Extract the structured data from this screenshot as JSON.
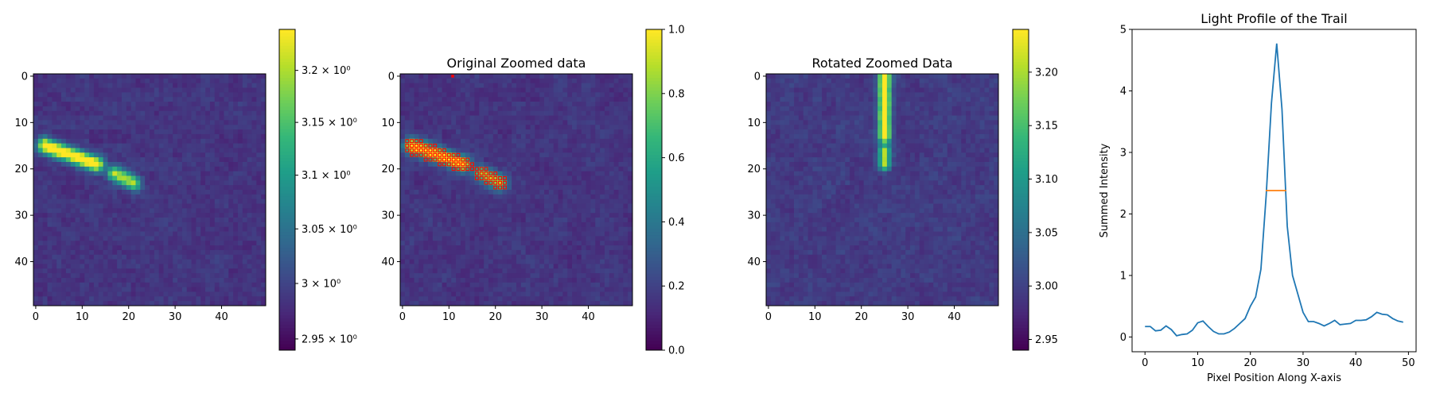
{
  "colors": {
    "viridis": [
      "#440154",
      "#482878",
      "#3e4989",
      "#31688e",
      "#26828e",
      "#1f9e89",
      "#35b779",
      "#6ece58",
      "#b5de2b",
      "#fde725"
    ],
    "line": "#1f77b4",
    "fwhm": "#ff7f0e",
    "overlay": "#ff0000"
  },
  "chart_data": [
    {
      "type": "heatmap",
      "title": "",
      "xlabel": "",
      "ylabel": "",
      "grid_size": 50,
      "xticks": [
        "0",
        "10",
        "20",
        "30",
        "40"
      ],
      "yticks": [
        "0",
        "10",
        "20",
        "30",
        "40"
      ],
      "background_level": 0.1,
      "trail": {
        "segments": [
          {
            "from": [
              2,
              15
            ],
            "to": [
              13,
              19
            ],
            "peak": 1.0
          },
          {
            "from": [
              17,
              21
            ],
            "to": [
              21,
              23
            ],
            "peak": 0.75
          }
        ],
        "width": 1.1
      },
      "colorbar": {
        "vmin": 2.94,
        "vmax": 3.24,
        "scale": "log",
        "ticks": [
          {
            "value": 2.95,
            "label": "2.95 × 10⁰"
          },
          {
            "value": 3.0,
            "label": "3 × 10⁰"
          },
          {
            "value": 3.05,
            "label": "3.05 × 10⁰"
          },
          {
            "value": 3.1,
            "label": "3.1 × 10⁰"
          },
          {
            "value": 3.15,
            "label": "3.15 × 10⁰"
          },
          {
            "value": 3.2,
            "label": "3.2 × 10⁰"
          }
        ]
      }
    },
    {
      "type": "heatmap",
      "title": "Original Zoomed data",
      "xlabel": "",
      "ylabel": "",
      "grid_size": 50,
      "xticks": [
        "0",
        "10",
        "20",
        "30",
        "40"
      ],
      "yticks": [
        "0",
        "10",
        "20",
        "30",
        "40"
      ],
      "background_level": 0.1,
      "trail": {
        "segments": [
          {
            "from": [
              2,
              15
            ],
            "to": [
              13,
              19
            ],
            "peak": 1.0
          },
          {
            "from": [
              17,
              21
            ],
            "to": [
              21,
              23
            ],
            "peak": 0.75
          }
        ],
        "width": 1.1
      },
      "overlay": "selected trail pixels marked",
      "colorbar": {
        "vmin": 0.0,
        "vmax": 1.0,
        "scale": "linear",
        "ticks": [
          {
            "value": 0.0,
            "label": "0.0"
          },
          {
            "value": 0.2,
            "label": "0.2"
          },
          {
            "value": 0.4,
            "label": "0.4"
          },
          {
            "value": 0.6,
            "label": "0.6"
          },
          {
            "value": 0.8,
            "label": "0.8"
          },
          {
            "value": 1.0,
            "label": "1.0"
          }
        ]
      }
    },
    {
      "type": "heatmap",
      "title": "Rotated Zoomed Data",
      "xlabel": "",
      "ylabel": "",
      "grid_size": 50,
      "xticks": [
        "0",
        "10",
        "20",
        "30",
        "40"
      ],
      "yticks": [
        "0",
        "10",
        "20",
        "30",
        "40"
      ],
      "background_level": 0.12,
      "trail": {
        "segments": [
          {
            "from": [
              25,
              0
            ],
            "to": [
              25,
              13
            ],
            "peak": 1.0
          },
          {
            "from": [
              25,
              16
            ],
            "to": [
              25,
              19
            ],
            "peak": 0.7
          }
        ],
        "width": 0.9
      },
      "colorbar": {
        "vmin": 2.94,
        "vmax": 3.24,
        "scale": "linear",
        "ticks": [
          {
            "value": 2.95,
            "label": "2.95"
          },
          {
            "value": 3.0,
            "label": "3.00"
          },
          {
            "value": 3.05,
            "label": "3.05"
          },
          {
            "value": 3.1,
            "label": "3.10"
          },
          {
            "value": 3.15,
            "label": "3.15"
          },
          {
            "value": 3.2,
            "label": "3.20"
          }
        ]
      }
    },
    {
      "type": "line",
      "title": "Light Profile of the Trail",
      "xlabel": "Pixel Position Along X-axis",
      "ylabel": "Summed Intensity",
      "xlim": [
        -2.45,
        51.45
      ],
      "ylim": [
        -0.24,
        5.0
      ],
      "xticks": [
        0,
        10,
        20,
        30,
        40,
        50
      ],
      "yticks": [
        0,
        1,
        2,
        3,
        4,
        5
      ],
      "series": [
        {
          "x": [
            0,
            1,
            2,
            3,
            4,
            5,
            6,
            7,
            8,
            9,
            10,
            11,
            12,
            13,
            14,
            15,
            16,
            17,
            18,
            19,
            20,
            21,
            22,
            23,
            24,
            25,
            26,
            27,
            28,
            29,
            30,
            31,
            32,
            33,
            34,
            35,
            36,
            37,
            38,
            39,
            40,
            41,
            42,
            43,
            44,
            45,
            46,
            47,
            48,
            49
          ],
          "values": [
            0.17,
            0.17,
            0.1,
            0.11,
            0.18,
            0.12,
            0.02,
            0.04,
            0.05,
            0.11,
            0.23,
            0.26,
            0.17,
            0.09,
            0.05,
            0.05,
            0.08,
            0.14,
            0.22,
            0.3,
            0.5,
            0.65,
            1.1,
            2.3,
            3.8,
            4.77,
            3.7,
            1.8,
            1.0,
            0.7,
            0.4,
            0.25,
            0.25,
            0.22,
            0.18,
            0.22,
            0.27,
            0.2,
            0.21,
            0.22,
            0.27,
            0.27,
            0.28,
            0.33,
            0.4,
            0.37,
            0.36,
            0.3,
            0.26,
            0.24
          ]
        }
      ],
      "fwhm_segment": {
        "x": [
          22.9,
          26.8
        ],
        "y": 2.38
      }
    }
  ]
}
